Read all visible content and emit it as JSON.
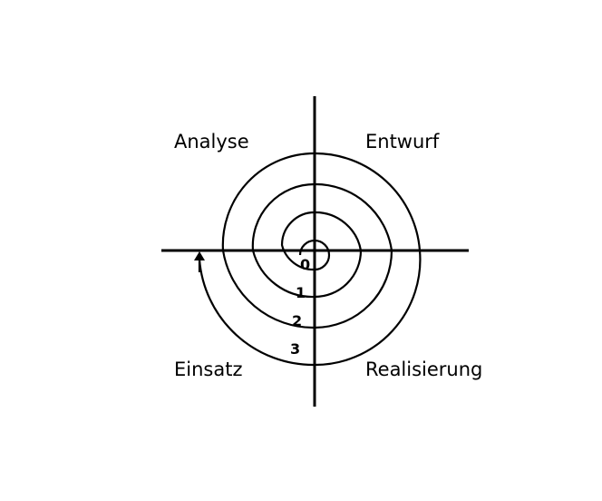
{
  "diagram": {
    "title": "",
    "quadrants": {
      "top_left": "Analyse",
      "top_right": "Entwurf",
      "bottom_left": "Einsatz",
      "bottom_right": "Realisierung"
    },
    "turns": [
      "0",
      "1",
      "2",
      "3"
    ],
    "colors": {
      "stroke": "#000000",
      "background": "#ffffff"
    }
  }
}
